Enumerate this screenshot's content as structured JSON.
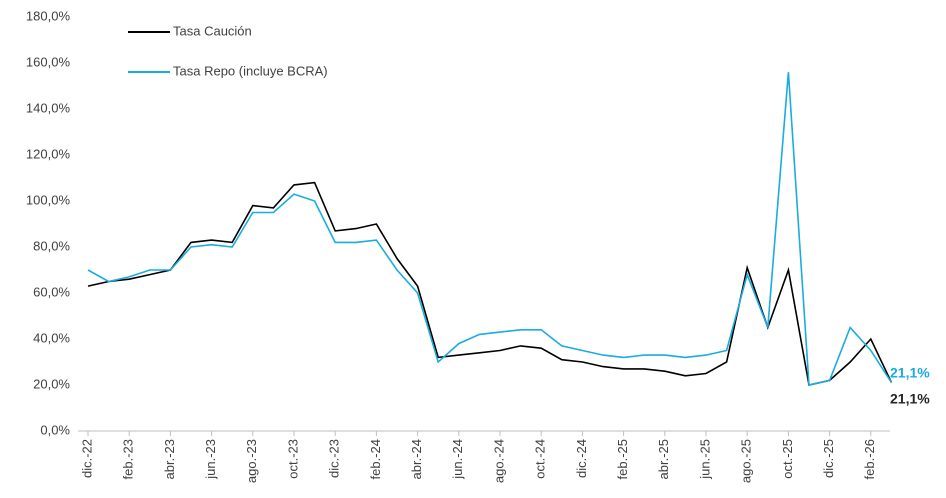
{
  "chart_data": {
    "type": "line",
    "x": [
      "2022-12",
      "2023-01",
      "2023-02",
      "2023-03",
      "2023-04",
      "2023-05",
      "2023-06",
      "2023-07",
      "2023-08",
      "2023-09",
      "2023-10",
      "2023-11",
      "2023-12",
      "2024-01",
      "2024-02",
      "2024-03",
      "2024-04",
      "2024-05",
      "2024-06",
      "2024-07",
      "2024-08",
      "2024-09",
      "2024-10",
      "2024-11",
      "2024-12",
      "2025-01",
      "2025-02",
      "2025-03",
      "2025-04",
      "2025-05",
      "2025-06",
      "2025-07",
      "2025-08",
      "2025-09",
      "2025-10",
      "2025-11",
      "2025-12",
      "2026-01",
      "2026-02",
      "2026-03"
    ],
    "series": [
      {
        "name": "Tasa Caución",
        "color": "#000000",
        "values": [
          63,
          65,
          66,
          68,
          70,
          82,
          83,
          82,
          98,
          97,
          107,
          108,
          87,
          88,
          90,
          75,
          63,
          32,
          33,
          34,
          35,
          37,
          36,
          31,
          30,
          28,
          27,
          27,
          26,
          24,
          25,
          30,
          71,
          45,
          70,
          20,
          22,
          30,
          40,
          21.1
        ],
        "value_labels": [
          null,
          null,
          null,
          null,
          null,
          null,
          null,
          null,
          null,
          null,
          null,
          null,
          null,
          null,
          null,
          null,
          null,
          null,
          null,
          null,
          null,
          null,
          null,
          null,
          null,
          null,
          null,
          null,
          null,
          null,
          null,
          null,
          null,
          null,
          null,
          null,
          null,
          null,
          null,
          "21,1%"
        ]
      },
      {
        "name": "Tasa Repo (incluye BCRA)",
        "color": "#1aace0",
        "values": [
          70,
          65,
          67,
          70,
          70,
          80,
          81,
          80,
          95,
          95,
          103,
          100,
          82,
          82,
          83,
          70,
          60,
          30,
          38,
          42,
          43,
          44,
          44,
          37,
          35,
          33,
          32,
          33,
          33,
          32,
          33,
          35,
          68,
          45,
          156,
          20,
          22,
          45,
          35,
          21.1
        ],
        "value_labels": [
          null,
          null,
          null,
          null,
          null,
          null,
          null,
          null,
          null,
          null,
          null,
          null,
          null,
          null,
          null,
          null,
          null,
          null,
          null,
          null,
          null,
          null,
          null,
          null,
          null,
          null,
          null,
          null,
          null,
          null,
          null,
          null,
          null,
          null,
          null,
          null,
          null,
          null,
          null,
          "21,1%"
        ]
      }
    ],
    "ylim": [
      0,
      180
    ],
    "yticks": [
      {
        "value": 0,
        "label": "0,0%"
      },
      {
        "value": 20,
        "label": "20,0%"
      },
      {
        "value": 40,
        "label": "40,0%"
      },
      {
        "value": 60,
        "label": "60,0%"
      },
      {
        "value": 80,
        "label": "80,0%"
      },
      {
        "value": 100,
        "label": "100,0%"
      },
      {
        "value": 120,
        "label": "120,0%"
      },
      {
        "value": 140,
        "label": "140,0%"
      },
      {
        "value": 160,
        "label": "160,0%"
      },
      {
        "value": 180,
        "label": "180,0%"
      }
    ],
    "xticks": [
      {
        "value": "2022-12",
        "label": "dic.-22"
      },
      {
        "value": "2023-02",
        "label": "feb.-23"
      },
      {
        "value": "2023-04",
        "label": "abr.-23"
      },
      {
        "value": "2023-06",
        "label": "jun.-23"
      },
      {
        "value": "2023-08",
        "label": "ago.-23"
      },
      {
        "value": "2023-10",
        "label": "oct.-23"
      },
      {
        "value": "2023-12",
        "label": "dic.-23"
      },
      {
        "value": "2024-02",
        "label": "feb.-24"
      },
      {
        "value": "2024-04",
        "label": "abr.-24"
      },
      {
        "value": "2024-06",
        "label": "jun.-24"
      },
      {
        "value": "2024-08",
        "label": "ago.-24"
      },
      {
        "value": "2024-10",
        "label": "oct.-24"
      },
      {
        "value": "2024-12",
        "label": "dic.-24"
      },
      {
        "value": "2025-02",
        "label": "feb.-25"
      },
      {
        "value": "2025-04",
        "label": "abr.-25"
      },
      {
        "value": "2025-06",
        "label": "jun.-25"
      },
      {
        "value": "2025-08",
        "label": "ago.-25"
      },
      {
        "value": "2025-10",
        "label": "oct.-25"
      },
      {
        "value": "2025-12",
        "label": "dic.-25"
      },
      {
        "value": "2026-02",
        "label": "feb.-26"
      }
    ],
    "legend": "top-left"
  }
}
